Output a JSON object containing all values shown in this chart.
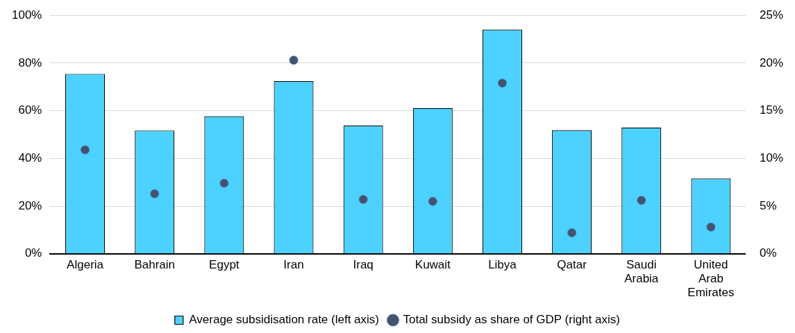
{
  "chart_data": {
    "type": "bar",
    "categories": [
      "Algeria",
      "Bahrain",
      "Egypt",
      "Iran",
      "Iraq",
      "Kuwait",
      "Libya",
      "Qatar",
      "Saudi Arabia",
      "United Arab Emirates"
    ],
    "series": [
      {
        "name": "Average subsidisation rate (left axis)",
        "color": "#4dd2ff",
        "values": [
          75.5,
          51.7,
          57.7,
          72.4,
          53.8,
          61.1,
          94.1,
          51.9,
          53.0,
          31.6
        ]
      },
      {
        "name": "Total subsidy as share of GDP (right axis)",
        "type": "scatter",
        "axis": "y2",
        "color": "#44546a",
        "x": [
          "Algeria",
          "Bahrain",
          "Egypt",
          "Iran",
          "Iraq",
          "Kuwait",
          "Libya",
          "Qatar",
          "Saudi Arabia",
          "United Arab Emirates"
        ],
        "values": [
          10.9,
          6.3,
          7.4,
          20.3,
          5.7,
          5.5,
          17.9,
          2.2,
          5.6,
          2.8
        ]
      }
    ],
    "ylim": [
      0,
      100
    ],
    "yticks": [
      {
        "value": 0,
        "label": "0%"
      },
      {
        "value": 20,
        "label": "20%"
      },
      {
        "value": 40,
        "label": "40%"
      },
      {
        "value": 60,
        "label": "60%"
      },
      {
        "value": 80,
        "label": "80%"
      },
      {
        "value": 100,
        "label": "100%"
      }
    ],
    "y2lim": [
      0,
      25
    ],
    "y2ticks": [
      {
        "value": 0,
        "label": "0%"
      },
      {
        "value": 5,
        "label": "5%"
      },
      {
        "value": 10,
        "label": "10%"
      },
      {
        "value": 15,
        "label": "15%"
      },
      {
        "value": 20,
        "label": "20%"
      },
      {
        "value": 25,
        "label": "25%"
      }
    ],
    "grid": "y",
    "legend": "bottom",
    "marker": "circle"
  }
}
